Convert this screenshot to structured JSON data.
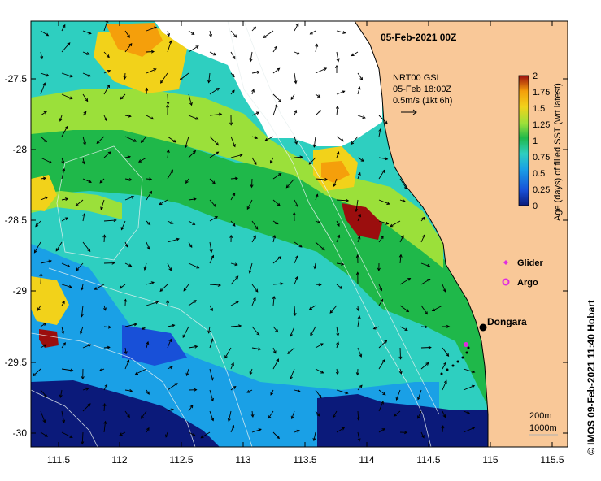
{
  "title_date": "05-Feb-2021 00Z",
  "vector_legend": {
    "line1": "NRT00 GSL",
    "line2": "05-Feb 18:00Z",
    "line3": "0.5m/s (1kt 6h)"
  },
  "colorbar": {
    "label": "Age (days) of filled SST (wrt latest)",
    "ticks": [
      "2",
      "1.75",
      "1.5",
      "1.25",
      "1",
      "0.75",
      "0.5",
      "0.25",
      "0"
    ],
    "colors": [
      "#0b1a7a",
      "#1850d8",
      "#1aa0e6",
      "#2ecfc0",
      "#1fb84a",
      "#9be03a",
      "#f2d21a",
      "#f59f0b",
      "#9b0e0e"
    ]
  },
  "legend": {
    "glider_label": "Glider",
    "argo_label": "Argo",
    "glider_color": "#e02be0",
    "argo_color": "#e02be0"
  },
  "places": {
    "dongara": "Dongara"
  },
  "depth_legend": {
    "line1": "200m",
    "line2": "1000m"
  },
  "credit": "© IMOS 09-Feb-2021 11:40 Hobart",
  "axes": {
    "lon_ticks": [
      "111.5",
      "112",
      "112.5",
      "113",
      "113.5",
      "114",
      "114.5",
      "115",
      "115.5"
    ],
    "lat_ticks": [
      "-27.5",
      "-28",
      "-28.5",
      "-29",
      "-29.5",
      "-30"
    ],
    "lon_range": [
      111.3,
      115.65
    ],
    "lat_range": [
      -30.08,
      -27.1
    ]
  },
  "colors": {
    "land": "#f9c898",
    "nodata": "#ffffff",
    "coast": "#000000"
  }
}
